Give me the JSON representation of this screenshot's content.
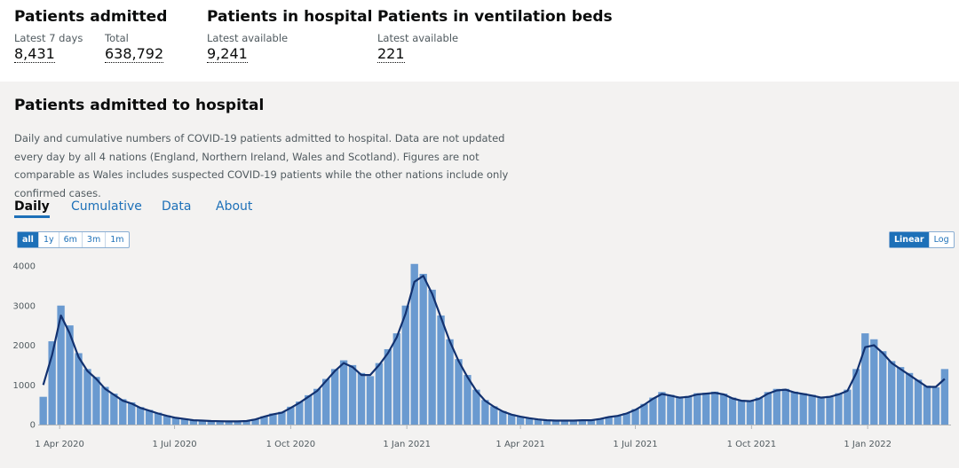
{
  "headlines": [
    {
      "title": "Patients admitted",
      "items": [
        {
          "label": "Latest 7 days",
          "value": "8,431"
        },
        {
          "label": "Total",
          "value": "638,792"
        }
      ]
    },
    {
      "title": "Patients in hospital",
      "items": [
        {
          "label": "Latest available",
          "value": "9,241"
        }
      ]
    },
    {
      "title": "Patients in ventilation beds",
      "items": [
        {
          "label": "Latest available",
          "value": "221"
        }
      ]
    }
  ],
  "card": {
    "title": "Patients admitted to hospital",
    "description": "Daily and cumulative numbers of COVID-19 patients admitted to hospital. Data are not updated every day by all 4 nations (England, Northern Ireland, Wales and Scotland). Figures are not comparable as Wales includes suspected COVID-19 patients while the other nations include only confirmed cases.",
    "tabs": [
      "Daily",
      "Cumulative",
      "Data",
      "About"
    ],
    "range_buttons": [
      "all",
      "1y",
      "6m",
      "3m",
      "1m"
    ],
    "scale_buttons": [
      "Linear",
      "Log"
    ]
  },
  "chart_data": {
    "type": "bar-line",
    "x": [
      "2020-03-19",
      "2020-03-26",
      "2020-04-02",
      "2020-04-09",
      "2020-04-16",
      "2020-04-23",
      "2020-04-30",
      "2020-05-07",
      "2020-05-14",
      "2020-05-21",
      "2020-05-28",
      "2020-06-04",
      "2020-06-11",
      "2020-06-18",
      "2020-06-25",
      "2020-07-02",
      "2020-07-09",
      "2020-07-16",
      "2020-07-23",
      "2020-07-30",
      "2020-08-06",
      "2020-08-13",
      "2020-08-20",
      "2020-08-27",
      "2020-09-03",
      "2020-09-10",
      "2020-09-17",
      "2020-09-24",
      "2020-10-01",
      "2020-10-08",
      "2020-10-15",
      "2020-10-22",
      "2020-10-29",
      "2020-11-05",
      "2020-11-12",
      "2020-11-19",
      "2020-11-26",
      "2020-12-03",
      "2020-12-10",
      "2020-12-17",
      "2020-12-24",
      "2020-12-31",
      "2021-01-07",
      "2021-01-14",
      "2021-01-21",
      "2021-01-28",
      "2021-02-04",
      "2021-02-11",
      "2021-02-18",
      "2021-02-25",
      "2021-03-04",
      "2021-03-11",
      "2021-03-18",
      "2021-03-25",
      "2021-04-01",
      "2021-04-08",
      "2021-04-15",
      "2021-04-22",
      "2021-04-29",
      "2021-05-06",
      "2021-05-13",
      "2021-05-20",
      "2021-05-27",
      "2021-06-03",
      "2021-06-10",
      "2021-06-17",
      "2021-06-24",
      "2021-07-01",
      "2021-07-08",
      "2021-07-15",
      "2021-07-22",
      "2021-07-29",
      "2021-08-05",
      "2021-08-12",
      "2021-08-19",
      "2021-08-26",
      "2021-09-02",
      "2021-09-09",
      "2021-09-16",
      "2021-09-23",
      "2021-09-30",
      "2021-10-07",
      "2021-10-14",
      "2021-10-21",
      "2021-10-28",
      "2021-11-04",
      "2021-11-11",
      "2021-11-18",
      "2021-11-25",
      "2021-12-02",
      "2021-12-09",
      "2021-12-16",
      "2021-12-23",
      "2021-12-30",
      "2022-01-06",
      "2022-01-13",
      "2022-01-20",
      "2022-01-27",
      "2022-02-03",
      "2022-02-10",
      "2022-02-17",
      "2022-02-24",
      "2022-03-03"
    ],
    "series": [
      {
        "kind": "bar",
        "color": "#6a9ad0",
        "values": [
          700,
          2100,
          3000,
          2500,
          1800,
          1400,
          1200,
          950,
          780,
          640,
          560,
          440,
          370,
          300,
          230,
          180,
          150,
          120,
          105,
          95,
          90,
          85,
          85,
          95,
          140,
          210,
          280,
          320,
          450,
          580,
          740,
          900,
          1150,
          1400,
          1620,
          1500,
          1300,
          1220,
          1550,
          1900,
          2300,
          3000,
          4050,
          3800,
          3400,
          2750,
          2150,
          1650,
          1250,
          880,
          620,
          460,
          340,
          260,
          205,
          165,
          135,
          115,
          105,
          100,
          105,
          115,
          115,
          150,
          200,
          230,
          290,
          390,
          520,
          680,
          820,
          750,
          700,
          720,
          790,
          800,
          830,
          780,
          680,
          620,
          600,
          680,
          820,
          900,
          900,
          830,
          790,
          750,
          700,
          720,
          790,
          880,
          1400,
          2300,
          2150,
          1850,
          1600,
          1450,
          1300,
          1130,
          980,
          940,
          1400
        ]
      },
      {
        "kind": "line",
        "color": "#12316f",
        "values": [
          1000,
          1750,
          2750,
          2300,
          1700,
          1350,
          1150,
          900,
          750,
          600,
          530,
          420,
          350,
          280,
          220,
          170,
          140,
          110,
          100,
          90,
          85,
          80,
          80,
          90,
          130,
          200,
          260,
          300,
          420,
          550,
          700,
          850,
          1100,
          1350,
          1550,
          1450,
          1250,
          1250,
          1500,
          1800,
          2200,
          2800,
          3600,
          3750,
          3300,
          2700,
          2100,
          1600,
          1200,
          850,
          600,
          450,
          330,
          250,
          200,
          160,
          130,
          110,
          100,
          100,
          100,
          110,
          110,
          140,
          190,
          220,
          280,
          370,
          500,
          650,
          770,
          730,
          680,
          700,
          760,
          780,
          800,
          760,
          660,
          600,
          590,
          650,
          780,
          860,
          880,
          810,
          770,
          730,
          680,
          700,
          760,
          850,
          1300,
          1950,
          2000,
          1800,
          1550,
          1400,
          1250,
          1100,
          950,
          950,
          1150
        ]
      }
    ],
    "xlim": [
      "2020-03-15",
      "2022-03-08"
    ],
    "xticks": [
      {
        "value": "2020-04-01",
        "label": "1 Apr 2020"
      },
      {
        "value": "2020-07-01",
        "label": "1 Jul 2020"
      },
      {
        "value": "2020-10-01",
        "label": "1 Oct 2020"
      },
      {
        "value": "2021-01-01",
        "label": "1 Jan 2021"
      },
      {
        "value": "2021-04-01",
        "label": "1 Apr 2021"
      },
      {
        "value": "2021-07-01",
        "label": "1 Jul 2021"
      },
      {
        "value": "2021-10-01",
        "label": "1 Oct 2021"
      },
      {
        "value": "2022-01-01",
        "label": "1 Jan 2022"
      }
    ],
    "ylim": [
      0,
      4000
    ],
    "yticks": [
      0,
      1000,
      2000,
      3000,
      4000
    ],
    "grid": false
  }
}
